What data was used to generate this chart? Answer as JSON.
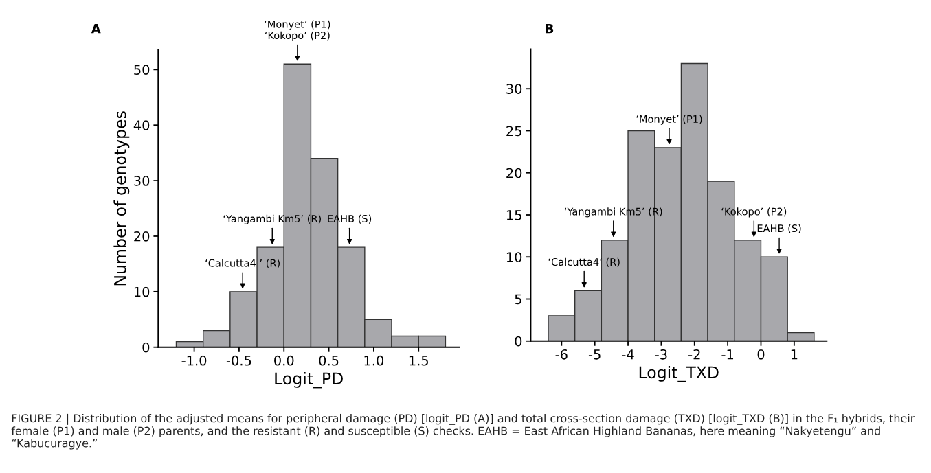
{
  "chart_data": [
    {
      "type": "histogram",
      "title": "A",
      "xlabel": "Logit_PD",
      "ylabel": "Number of genotypes",
      "bins": [
        -1.2,
        -0.9,
        -0.6,
        -0.3,
        0.0,
        0.3,
        0.6,
        0.9,
        1.2,
        1.5,
        1.8
      ],
      "values": [
        1,
        3,
        10,
        18,
        51,
        34,
        18,
        5,
        2,
        2
      ],
      "color": "#a8a8ac",
      "xlim": [
        -1.4,
        1.95
      ],
      "ylim": [
        0,
        53.5
      ],
      "xticks": [
        {
          "value": -1.0,
          "label": "-1.0"
        },
        {
          "value": -0.5,
          "label": "-0.5"
        },
        {
          "value": 0.0,
          "label": "0.0"
        },
        {
          "value": 0.5,
          "label": "0.5"
        },
        {
          "value": 1.0,
          "label": "1.0"
        },
        {
          "value": 1.5,
          "label": "1.5"
        }
      ],
      "yticks": [
        0,
        10,
        20,
        30,
        40,
        50
      ],
      "grid": false,
      "legend": false,
      "annotations": [
        {
          "text": "‘Monyet’ (P1)\n‘Kokopo’ (P2)",
          "x": 0.15,
          "y": 51
        },
        {
          "text": "‘Calcutta4 ’ (R)",
          "x": -0.46,
          "y": 10
        },
        {
          "text": "‘Yangambi Km5’ (R)",
          "x": -0.13,
          "y": 18
        },
        {
          "text": "EAHB (S)",
          "x": 0.73,
          "y": 18
        },
        "FIGURE 2 | Distribution of the adjusted means for peripheral damage (PD) [logit_PD (A)] and total cross-section damage (TXD) [logit_TXD (B)] in the F₁ hybrids, their female (P1) and male (P2) parents, and the resistant (R) and susceptible (S) checks. EAHB = East African Highland Bananas, here meaning “Nakyetengu” and “Kabucuragye.”"
      ]
    },
    {
      "type": "histogram",
      "title": "B",
      "xlabel": "Logit_TXD",
      "bins": [
        -6.4,
        -5.6,
        -4.8,
        -4.0,
        -3.2,
        -2.4,
        -1.6,
        -0.8,
        0.0,
        0.8,
        1.6
      ],
      "values": [
        3,
        6,
        12,
        25,
        23,
        33,
        19,
        12,
        10,
        1
      ],
      "color": "#a8a8ac",
      "xlim": [
        -6.93,
        1.98
      ],
      "ylim": [
        0,
        34.7
      ],
      "xticks": [
        -6,
        -5,
        -4,
        -3,
        -2,
        -1,
        0,
        1
      ],
      "yticks": [
        0,
        5,
        10,
        15,
        20,
        25,
        30
      ],
      "grid": false,
      "legend": false,
      "annotations": [
        {
          "text": "‘Calcutta4’ (R)",
          "x": -5.32,
          "y": 6
        },
        {
          "text": "‘Yangambi Km5’ (R)",
          "x": -4.44,
          "y": 12
        },
        {
          "text": "‘Monyet’ (P1)",
          "x": -2.76,
          "y": 23
        },
        {
          "text": "‘Kokopo’ (P2)",
          "x": -0.21,
          "y": 12
        },
        {
          "text": "EAHB (S)",
          "x": 0.55,
          "y": 10
        }
      ]
    }
  ]
}
